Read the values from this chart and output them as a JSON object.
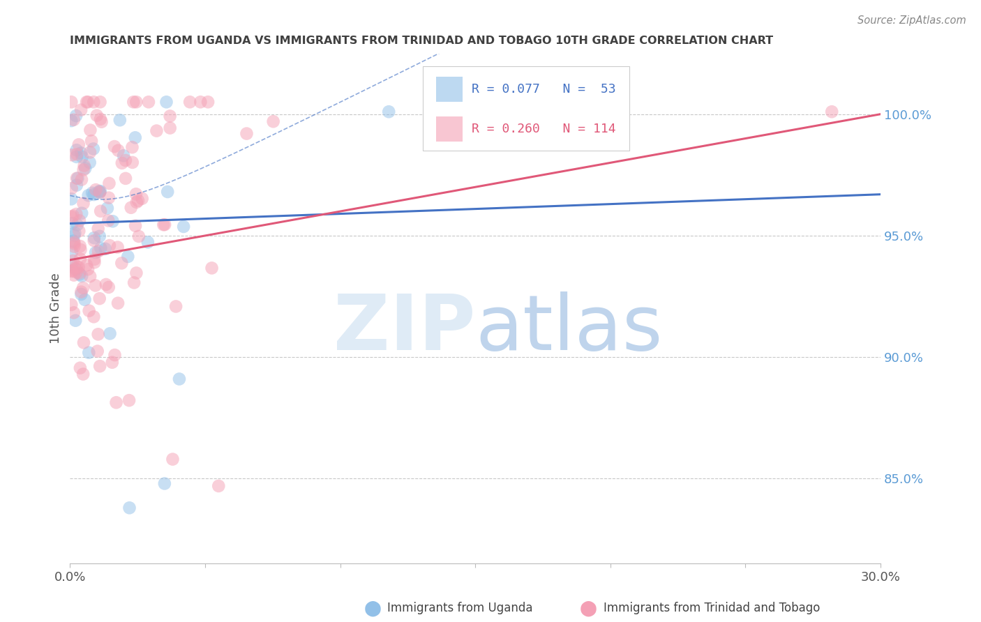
{
  "title": "IMMIGRANTS FROM UGANDA VS IMMIGRANTS FROM TRINIDAD AND TOBAGO 10TH GRADE CORRELATION CHART",
  "source": "Source: ZipAtlas.com",
  "ylabel": "10th Grade",
  "legend_footer_uganda": "Immigrants from Uganda",
  "legend_footer_tt": "Immigrants from Trinidad and Tobago",
  "blue_color": "#92C0E8",
  "pink_color": "#F4A0B5",
  "blue_line_color": "#4472C4",
  "pink_line_color": "#E05878",
  "background_color": "#FFFFFF",
  "grid_color": "#C8C8C8",
  "title_color": "#404040",
  "right_axis_color": "#5B9BD5",
  "xlim": [
    0.0,
    0.3
  ],
  "ylim": [
    0.815,
    1.025
  ],
  "yticks": [
    0.85,
    0.9,
    0.95,
    1.0
  ],
  "ytick_labels": [
    "85.0%",
    "90.0%",
    "95.0%",
    "100.0%"
  ],
  "R_uganda": 0.077,
  "N_uganda": 53,
  "R_tt": 0.26,
  "N_tt": 114
}
